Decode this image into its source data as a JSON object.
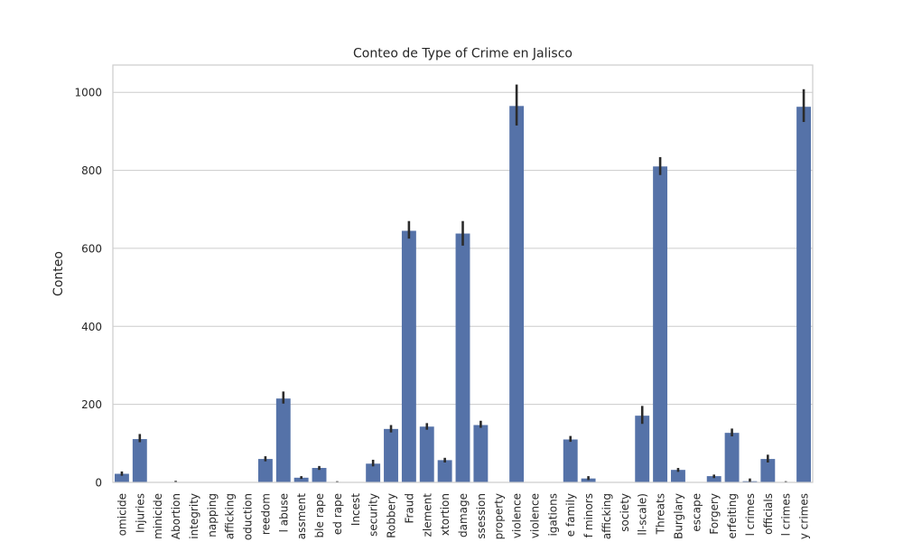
{
  "chart_data": {
    "type": "bar",
    "title": "Conteo de Type of Crime en Jalisco",
    "xlabel": "",
    "ylabel": "Conteo",
    "ylim": [
      0,
      1070
    ],
    "yticks": [
      0,
      200,
      400,
      600,
      800,
      1000
    ],
    "grid": "y",
    "bar_color": "#5572a8",
    "error_color": "#2b2b2b",
    "categories": [
      "omicide",
      "Injuries",
      "minicide",
      "Abortion",
      "integrity",
      "napping",
      "afficking",
      "oduction",
      "reedom",
      "l abuse",
      "assment",
      "ble rape",
      "ed rape",
      "Incest",
      "security",
      "Robbery",
      "Fraud",
      "zlement",
      "xtortion",
      "damage",
      "ssession",
      "property",
      "violence",
      "violence",
      "igations",
      "e family",
      "f minors",
      "afficking",
      "society",
      "ll-scale)",
      "Threats",
      "Burglary",
      "escape",
      "Forgery",
      "erfeiting",
      "l crimes",
      "officials",
      "l crimes",
      "y crimes"
    ],
    "values": [
      22,
      111,
      1,
      1,
      0,
      0,
      0,
      0,
      60,
      215,
      12,
      37,
      1,
      0,
      48,
      137,
      645,
      143,
      57,
      638,
      147,
      0,
      965,
      0,
      0,
      110,
      10,
      0,
      0,
      171,
      810,
      32,
      0,
      16,
      127,
      3,
      60,
      1,
      963
    ],
    "errors": [
      [
        17,
        28
      ],
      [
        103,
        124
      ],
      null,
      [
        0,
        4
      ],
      null,
      null,
      null,
      null,
      [
        54,
        67
      ],
      [
        202,
        233
      ],
      [
        9,
        16
      ],
      [
        32,
        42
      ],
      [
        0,
        3
      ],
      null,
      [
        41,
        58
      ],
      [
        128,
        147
      ],
      [
        625,
        670
      ],
      [
        135,
        152
      ],
      [
        51,
        63
      ],
      [
        607,
        670
      ],
      [
        140,
        158
      ],
      null,
      [
        915,
        1020
      ],
      null,
      null,
      [
        104,
        119
      ],
      [
        6,
        16
      ],
      null,
      null,
      [
        150,
        196
      ],
      [
        788,
        834
      ],
      [
        27,
        37
      ],
      null,
      [
        11,
        20
      ],
      [
        118,
        138
      ],
      [
        0,
        10
      ],
      [
        51,
        71
      ],
      [
        0,
        3
      ],
      [
        924,
        1008
      ]
    ]
  }
}
